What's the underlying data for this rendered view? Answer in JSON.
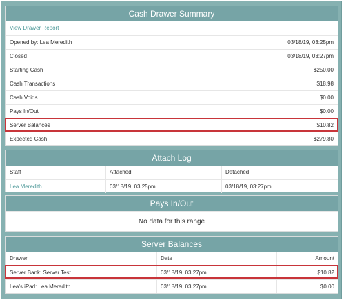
{
  "summary": {
    "title": "Cash Drawer Summary",
    "view_report_link": "View Drawer Report",
    "rows": [
      {
        "label": "Opened by: Lea Meredith",
        "value": "03/18/19, 03:25pm"
      },
      {
        "label": "Closed",
        "value": "03/18/19, 03:27pm"
      },
      {
        "label": "Starting Cash",
        "value": "$250.00"
      },
      {
        "label": "Cash Transactions",
        "value": "$18.98"
      },
      {
        "label": "Cash Voids",
        "value": "$0.00"
      },
      {
        "label": "Pays In/Out",
        "value": "$0.00"
      },
      {
        "label": "Server Balances",
        "value": "$10.82"
      },
      {
        "label": "Expected Cash",
        "value": "$279.80"
      }
    ]
  },
  "attach_log": {
    "title": "Attach Log",
    "headers": [
      "Staff",
      "Attached",
      "Detached"
    ],
    "rows": [
      {
        "staff": "Lea Meredith",
        "attached": "03/18/19, 03:25pm",
        "detached": "03/18/19, 03:27pm"
      }
    ]
  },
  "pays": {
    "title": "Pays In/Out",
    "empty_text": "No data for this range"
  },
  "server_balances": {
    "title": "Server Balances",
    "headers": [
      "Drawer",
      "Date",
      "Amount"
    ],
    "rows": [
      {
        "drawer": "Server Bank: Server Test",
        "date": "03/18/19, 03:27pm",
        "amount": "$10.82"
      },
      {
        "drawer": "Lea's iPad: Lea Meredith",
        "date": "03/18/19, 03:27pm",
        "amount": "$0.00"
      }
    ]
  },
  "colors": {
    "header": "#76a4a6",
    "frame": "#86b1b1",
    "link": "#4f9a9a",
    "highlight": "#c8353a"
  }
}
